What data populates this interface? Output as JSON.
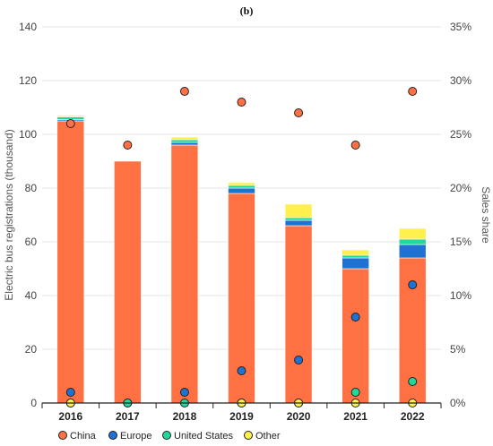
{
  "chart_data": {
    "type": "bar",
    "title": "(b)",
    "ylabel": "Electric bus registrations (thousand)",
    "y2label": "Sales share",
    "ylim": [
      0,
      140
    ],
    "yticks": [
      0,
      20,
      40,
      60,
      80,
      100,
      120,
      140
    ],
    "y2lim": [
      0,
      35
    ],
    "y2ticks": [
      "0%",
      "5%",
      "10%",
      "15%",
      "20%",
      "25%",
      "30%",
      "35%"
    ],
    "categories": [
      "2016",
      "2017",
      "2018",
      "2019",
      "2020",
      "2021",
      "2022"
    ],
    "stacked": true,
    "grid": true,
    "legend_position": "bottom",
    "series": [
      {
        "name": "China",
        "color": "#ff7043",
        "values": [
          105,
          90,
          96,
          78,
          66,
          50,
          54
        ]
      },
      {
        "name": "Europe",
        "color": "#1e73d2",
        "values": [
          0.5,
          0,
          1,
          2,
          2,
          4,
          5
        ]
      },
      {
        "name": "United States",
        "color": "#21d89a",
        "values": [
          1,
          0,
          1,
          1,
          1,
          1,
          2
        ]
      },
      {
        "name": "Other",
        "color": "#fff04d",
        "values": [
          0.5,
          0,
          1,
          1,
          5,
          2,
          4
        ]
      }
    ],
    "share_points": [
      {
        "name": "China",
        "color": "#ff7043",
        "values": [
          26,
          24,
          29,
          28,
          27,
          24,
          29
        ]
      },
      {
        "name": "Europe",
        "color": "#1e73d2",
        "values": [
          1,
          0,
          1,
          3,
          4,
          8,
          11
        ]
      },
      {
        "name": "United States",
        "color": "#21d89a",
        "values": [
          0,
          0,
          0,
          0,
          0,
          1,
          2
        ]
      },
      {
        "name": "Other",
        "color": "#fff04d",
        "values": [
          0,
          null,
          null,
          0,
          0,
          0,
          0
        ]
      }
    ]
  }
}
